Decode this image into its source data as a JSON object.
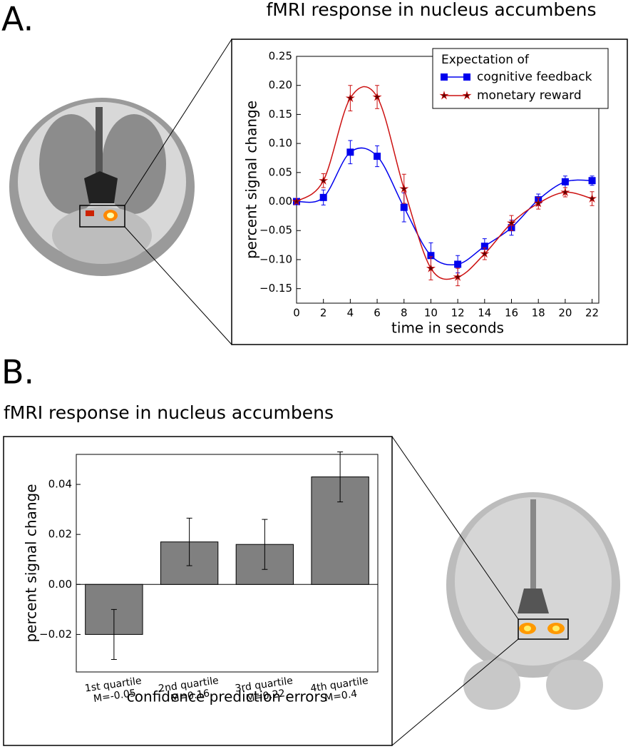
{
  "chart_data": [
    {
      "type": "line",
      "panel_label": "A.",
      "title": "fMRI response in nucleus accumbens",
      "x": [
        0,
        2,
        4,
        6,
        8,
        10,
        12,
        14,
        16,
        18,
        20,
        22
      ],
      "series": [
        {
          "name": "cognitive feedback",
          "color": "#0000ee",
          "marker": "square",
          "values": [
            0.0,
            0.007,
            0.085,
            0.078,
            -0.01,
            -0.093,
            -0.108,
            -0.077,
            -0.045,
            0.003,
            0.034,
            0.036
          ],
          "errors": [
            0,
            0.013,
            0.02,
            0.018,
            0.025,
            0.022,
            0.015,
            0.013,
            0.013,
            0.01,
            0.01,
            0.008
          ]
        },
        {
          "name": "monetary reward",
          "color": "#cc1111",
          "marker": "star",
          "values": [
            0.0,
            0.036,
            0.178,
            0.18,
            0.022,
            -0.115,
            -0.13,
            -0.09,
            -0.037,
            -0.003,
            0.016,
            0.005
          ],
          "errors": [
            0,
            0.012,
            0.022,
            0.02,
            0.025,
            0.02,
            0.015,
            0.01,
            0.013,
            0.01,
            0.008,
            0.012
          ]
        }
      ],
      "xlim": [
        0,
        22.5
      ],
      "xticks": [
        0,
        2,
        4,
        6,
        8,
        10,
        12,
        14,
        16,
        18,
        20,
        22
      ],
      "ylim": [
        -0.175,
        0.25
      ],
      "yticks": [
        {
          "value": -0.15,
          "label": "−0.15"
        },
        {
          "value": -0.1,
          "label": "−0.10"
        },
        {
          "value": -0.05,
          "label": "−0.05"
        },
        {
          "value": 0,
          "label": "0.00"
        },
        {
          "value": 0.05,
          "label": "0.05"
        },
        {
          "value": 0.1,
          "label": "0.10"
        },
        {
          "value": 0.15,
          "label": "0.15"
        },
        {
          "value": 0.2,
          "label": "0.20"
        },
        {
          "value": 0.25,
          "label": "0.25"
        }
      ],
      "xlabel": "time in seconds",
      "ylabel": "percent signal change",
      "legend_title": "Expectation of",
      "legend": "upper right"
    },
    {
      "type": "bar",
      "panel_label": "B.",
      "title": "fMRI response in nucleus accumbens",
      "categories": [
        [
          "1st quartile",
          "M=-0.05"
        ],
        [
          "2nd quartile",
          "M=0.16"
        ],
        [
          "3rd quartile",
          "M=0.22"
        ],
        [
          "4th quartile",
          "M=0.4"
        ]
      ],
      "values": [
        -0.02,
        0.017,
        0.016,
        0.043
      ],
      "errors": [
        0.01,
        0.0095,
        0.01,
        0.01
      ],
      "color": "#808080",
      "ylim": [
        -0.035,
        0.052
      ],
      "yticks": [
        {
          "value": -0.02,
          "label": "−0.02"
        },
        {
          "value": 0,
          "label": "0.00"
        },
        {
          "value": 0.02,
          "label": "0.02"
        },
        {
          "value": 0.04,
          "label": "0.04"
        }
      ],
      "xlabel": "confidence prediction errors",
      "ylabel": "percent signal change"
    }
  ]
}
